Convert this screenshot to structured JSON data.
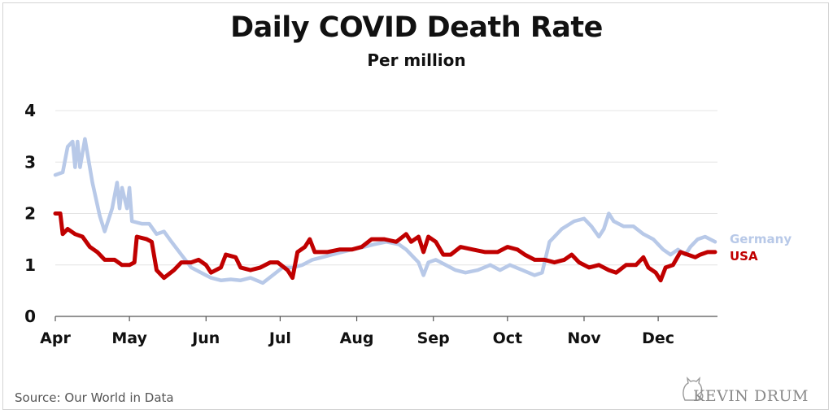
{
  "title": "Daily COVID Death Rate",
  "subtitle": "Per million",
  "source": "Source: Our World in Data",
  "brand": "KEVIN DRUM",
  "colors": {
    "Germany": "#b8c9e8",
    "USA": "#c00000",
    "grid": "#e4e4e4",
    "axis": "#555555"
  },
  "chart_data": {
    "type": "line",
    "title": "Daily COVID Death Rate",
    "subtitle": "Per million",
    "xlabel": "",
    "ylabel": "",
    "ylim": [
      0,
      4
    ],
    "yticks": [
      0,
      1,
      2,
      3,
      4
    ],
    "months": [
      "Apr",
      "May",
      "Jun",
      "Jul",
      "Aug",
      "Sep",
      "Oct",
      "Nov",
      "Dec"
    ],
    "legend": "right, at end of lines",
    "grid": true,
    "series": [
      {
        "name": "Germany",
        "color": "#b8c9e8",
        "points": [
          [
            "Apr",
            2.75
          ],
          [
            "Apr 4",
            2.8
          ],
          [
            "Apr 6",
            3.3
          ],
          [
            "Apr 8",
            3.4
          ],
          [
            "Apr 9",
            2.9
          ],
          [
            "Apr 10",
            3.4
          ],
          [
            "Apr 11",
            2.9
          ],
          [
            "Apr 13",
            3.45
          ],
          [
            "Apr 16",
            2.6
          ],
          [
            "Apr 19",
            1.95
          ],
          [
            "Apr 21",
            1.65
          ],
          [
            "Apr 24",
            2.1
          ],
          [
            "Apr 26",
            2.6
          ],
          [
            "Apr 27",
            2.1
          ],
          [
            "Apr 28",
            2.5
          ],
          [
            "Apr 30",
            2.1
          ],
          [
            "May 1",
            2.5
          ],
          [
            "May 2",
            1.85
          ],
          [
            "May 6",
            1.8
          ],
          [
            "May 9",
            1.8
          ],
          [
            "May 12",
            1.6
          ],
          [
            "May 15",
            1.65
          ],
          [
            "May 18",
            1.45
          ],
          [
            "May 22",
            1.2
          ],
          [
            "May 26",
            0.95
          ],
          [
            "May 30",
            0.85
          ],
          [
            "Jun 3",
            0.75
          ],
          [
            "Jun 7",
            0.7
          ],
          [
            "Jun 11",
            0.72
          ],
          [
            "Jun 15",
            0.7
          ],
          [
            "Jun 19",
            0.75
          ],
          [
            "Jun 24",
            0.65
          ],
          [
            "Jun 28",
            0.8
          ],
          [
            "Jul 2",
            0.95
          ],
          [
            "Jul 6",
            0.95
          ],
          [
            "Jul 10",
            1.0
          ],
          [
            "Jul 14",
            1.1
          ],
          [
            "Jul 18",
            1.15
          ],
          [
            "Jul 22",
            1.2
          ],
          [
            "Jul 26",
            1.25
          ],
          [
            "Jul 30",
            1.3
          ],
          [
            "Aug 4",
            1.35
          ],
          [
            "Aug 8",
            1.4
          ],
          [
            "Aug 13",
            1.45
          ],
          [
            "Aug 18",
            1.4
          ],
          [
            "Aug 21",
            1.3
          ],
          [
            "Aug 24",
            1.15
          ],
          [
            "Aug 26",
            1.05
          ],
          [
            "Aug 28",
            0.8
          ],
          [
            "Aug 30",
            1.05
          ],
          [
            "Sep 2",
            1.1
          ],
          [
            "Sep 6",
            1.0
          ],
          [
            "Sep 10",
            0.9
          ],
          [
            "Sep 14",
            0.85
          ],
          [
            "Sep 19",
            0.9
          ],
          [
            "Sep 24",
            1.0
          ],
          [
            "Sep 28",
            0.9
          ],
          [
            "Oct 2",
            1.0
          ],
          [
            "Oct 7",
            0.9
          ],
          [
            "Oct 12",
            0.8
          ],
          [
            "Oct 15",
            0.85
          ],
          [
            "Oct 18",
            1.45
          ],
          [
            "Oct 23",
            1.7
          ],
          [
            "Oct 28",
            1.85
          ],
          [
            "Nov 1",
            1.9
          ],
          [
            "Nov 4",
            1.75
          ],
          [
            "Nov 7",
            1.55
          ],
          [
            "Nov 9",
            1.7
          ],
          [
            "Nov 11",
            2.0
          ],
          [
            "Nov 13",
            1.85
          ],
          [
            "Nov 17",
            1.75
          ],
          [
            "Nov 21",
            1.75
          ],
          [
            "Nov 25",
            1.6
          ],
          [
            "Nov 29",
            1.5
          ],
          [
            "Dec 3",
            1.3
          ],
          [
            "Dec 6",
            1.2
          ],
          [
            "Dec 9",
            1.3
          ],
          [
            "Dec 12",
            1.2
          ],
          [
            "Dec 14",
            1.35
          ],
          [
            "Dec 17",
            1.5
          ],
          [
            "Dec 20",
            1.55
          ],
          [
            "Dec 22",
            1.5
          ],
          [
            "Dec 24",
            1.45
          ]
        ]
      },
      {
        "name": "USA",
        "color": "#c00000",
        "points": [
          [
            "Apr",
            2.0
          ],
          [
            "Apr 3",
            2.0
          ],
          [
            "Apr 4",
            1.6
          ],
          [
            "Apr 6",
            1.7
          ],
          [
            "Apr 9",
            1.6
          ],
          [
            "Apr 12",
            1.55
          ],
          [
            "Apr 15",
            1.35
          ],
          [
            "Apr 18",
            1.25
          ],
          [
            "Apr 21",
            1.1
          ],
          [
            "Apr 25",
            1.1
          ],
          [
            "Apr 28",
            1.0
          ],
          [
            "May 1",
            1.0
          ],
          [
            "May 3",
            1.05
          ],
          [
            "May 4",
            1.55
          ],
          [
            "May 8",
            1.5
          ],
          [
            "May 10",
            1.45
          ],
          [
            "May 12",
            0.9
          ],
          [
            "May 15",
            0.75
          ],
          [
            "May 19",
            0.9
          ],
          [
            "May 22",
            1.05
          ],
          [
            "May 26",
            1.05
          ],
          [
            "May 29",
            1.1
          ],
          [
            "Jun 1",
            1.0
          ],
          [
            "Jun 3",
            0.85
          ],
          [
            "Jun 7",
            0.95
          ],
          [
            "Jun 9",
            1.2
          ],
          [
            "Jun 13",
            1.15
          ],
          [
            "Jun 15",
            0.95
          ],
          [
            "Jun 19",
            0.9
          ],
          [
            "Jun 23",
            0.95
          ],
          [
            "Jun 27",
            1.05
          ],
          [
            "Jun 30",
            1.05
          ],
          [
            "Jul 4",
            0.9
          ],
          [
            "Jul 6",
            0.75
          ],
          [
            "Jul 8",
            1.25
          ],
          [
            "Jul 11",
            1.35
          ],
          [
            "Jul 13",
            1.5
          ],
          [
            "Jul 15",
            1.25
          ],
          [
            "Jul 20",
            1.25
          ],
          [
            "Jul 25",
            1.3
          ],
          [
            "Jul 30",
            1.3
          ],
          [
            "Aug 3",
            1.35
          ],
          [
            "Aug 7",
            1.5
          ],
          [
            "Aug 12",
            1.5
          ],
          [
            "Aug 17",
            1.45
          ],
          [
            "Aug 21",
            1.6
          ],
          [
            "Aug 23",
            1.45
          ],
          [
            "Aug 26",
            1.55
          ],
          [
            "Aug 28",
            1.25
          ],
          [
            "Aug 30",
            1.55
          ],
          [
            "Sep 2",
            1.45
          ],
          [
            "Sep 5",
            1.2
          ],
          [
            "Sep 8",
            1.2
          ],
          [
            "Sep 12",
            1.35
          ],
          [
            "Sep 17",
            1.3
          ],
          [
            "Sep 22",
            1.25
          ],
          [
            "Sep 27",
            1.25
          ],
          [
            "Oct 1",
            1.35
          ],
          [
            "Oct 5",
            1.3
          ],
          [
            "Oct 8",
            1.2
          ],
          [
            "Oct 12",
            1.1
          ],
          [
            "Oct 16",
            1.1
          ],
          [
            "Oct 20",
            1.05
          ],
          [
            "Oct 24",
            1.1
          ],
          [
            "Oct 27",
            1.2
          ],
          [
            "Oct 30",
            1.05
          ],
          [
            "Nov 3",
            0.95
          ],
          [
            "Nov 7",
            1.0
          ],
          [
            "Nov 11",
            0.9
          ],
          [
            "Nov 14",
            0.85
          ],
          [
            "Nov 18",
            1.0
          ],
          [
            "Nov 22",
            1.0
          ],
          [
            "Nov 25",
            1.15
          ],
          [
            "Nov 27",
            0.95
          ],
          [
            "Nov 30",
            0.85
          ],
          [
            "Dec 2",
            0.7
          ],
          [
            "Dec 4",
            0.95
          ],
          [
            "Dec 7",
            1.0
          ],
          [
            "Dec 10",
            1.25
          ],
          [
            "Dec 13",
            1.2
          ],
          [
            "Dec 16",
            1.15
          ],
          [
            "Dec 18",
            1.2
          ],
          [
            "Dec 21",
            1.25
          ],
          [
            "Dec 24",
            1.25
          ]
        ]
      }
    ]
  }
}
